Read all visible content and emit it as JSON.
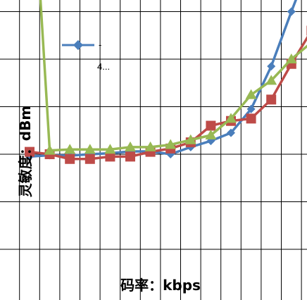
{
  "chart_data": {
    "type": "line",
    "xlabel": "码率：kbps",
    "ylabel": "灵敏度：dBm",
    "x": [
      1,
      2,
      3,
      4,
      5,
      6,
      7,
      8,
      9,
      10,
      11,
      12,
      13,
      14,
      15
    ],
    "ylim": [
      0,
      6
    ],
    "grid": true,
    "legend": {
      "position": "top-left",
      "entries": [
        "-",
        "4..."
      ]
    },
    "series": [
      {
        "name": "-",
        "color": "#4a7ebb",
        "marker": "diamond",
        "values": [
          1.95,
          1.98,
          1.97,
          2.0,
          2.02,
          2.06,
          2.06,
          2.0,
          2.15,
          2.28,
          2.45,
          2.95,
          3.85,
          5.0,
          6.1
        ]
      },
      {
        "name": "",
        "color": "#be4b48",
        "marker": "square",
        "values": [
          2.05,
          2.0,
          1.9,
          1.9,
          1.95,
          1.95,
          2.05,
          2.12,
          2.25,
          2.6,
          2.7,
          2.75,
          3.15,
          3.9,
          4.6
        ]
      },
      {
        "name": "",
        "color": "#98b954",
        "marker": "triangle",
        "values": [
          9.0,
          2.08,
          2.1,
          2.1,
          2.1,
          2.15,
          2.15,
          2.2,
          2.3,
          2.4,
          2.75,
          3.25,
          3.55,
          4.0,
          4.35
        ]
      }
    ]
  }
}
